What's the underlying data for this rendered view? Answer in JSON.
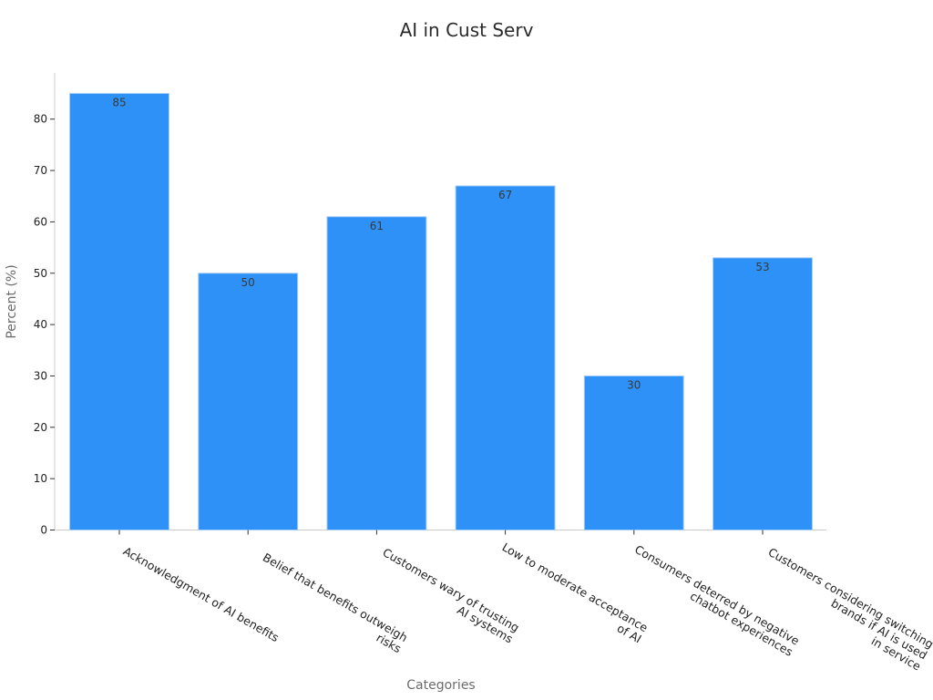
{
  "chart_data": {
    "type": "bar",
    "title": "AI in Cust Serv",
    "xlabel": "Categories",
    "ylabel": "Percent (%)",
    "categories": [
      "Acknowledgment of AI benefits",
      "Belief that benefits outweigh\nrisks",
      "Customers wary of trusting\nAI systems",
      "Low to moderate acceptance\nof AI",
      "Consumers deterred by negative\nchatbot experiences",
      "Customers considering switching\nbrands if AI is used\nin service"
    ],
    "values": [
      85,
      50,
      61,
      67,
      30,
      53
    ],
    "data_labels": [
      "85",
      "50",
      "61",
      "67",
      "30",
      "53"
    ],
    "ylim": [
      0,
      89
    ],
    "yticks": [
      0,
      10,
      20,
      30,
      40,
      50,
      60,
      70,
      80
    ],
    "grid": false,
    "legend": "none",
    "bar_color": "#2d91f7",
    "bar_edge_color": "#a6cdf6"
  }
}
